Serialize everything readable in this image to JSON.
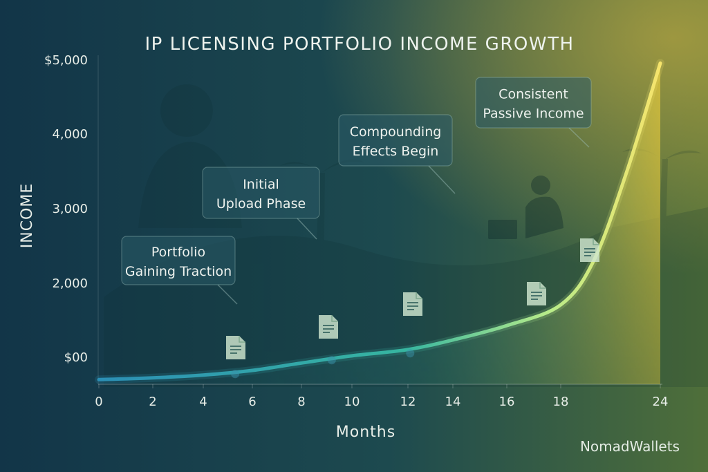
{
  "chart_data": {
    "type": "area",
    "title": "IP LICENSING PORTFOLIO INCOME GROWTH",
    "xlabel": "Months",
    "ylabel": "INCOME",
    "x_ticks": [
      "0",
      "2",
      "4",
      "6",
      "8",
      "10",
      "12",
      "14",
      "16",
      "18",
      "24"
    ],
    "y_ticks": [
      "$00",
      "2,000",
      "3,000",
      "4,000",
      "$5,000"
    ],
    "series": [
      {
        "x": [
          0,
          2,
          4,
          6,
          8,
          10,
          12,
          14,
          16,
          18,
          20,
          22,
          24
        ],
        "values": [
          -250,
          -230,
          -200,
          -150,
          -70,
          20,
          190,
          450,
          840,
          1400,
          2300,
          3500,
          4950
        ]
      }
    ],
    "annotations": [
      {
        "lines": [
          "Portfolio",
          "Gaining Traction"
        ]
      },
      {
        "lines": [
          "Initial",
          "Upload Phase"
        ]
      },
      {
        "lines": [
          "Compounding",
          "Effects Begin"
        ]
      },
      {
        "lines": [
          "Consistent",
          "Passive Income"
        ]
      }
    ],
    "grid": false,
    "legend": "none"
  },
  "brand": "NomadWallets",
  "colors": {
    "background_left": "#123548",
    "background_right": "#4f6f3a",
    "curve_start": "#2c8fb5",
    "curve_end": "#f6e46c",
    "area_fill": "#b9a640",
    "callout_bg": "#2a5a66"
  },
  "icons": [
    "document-icon"
  ]
}
